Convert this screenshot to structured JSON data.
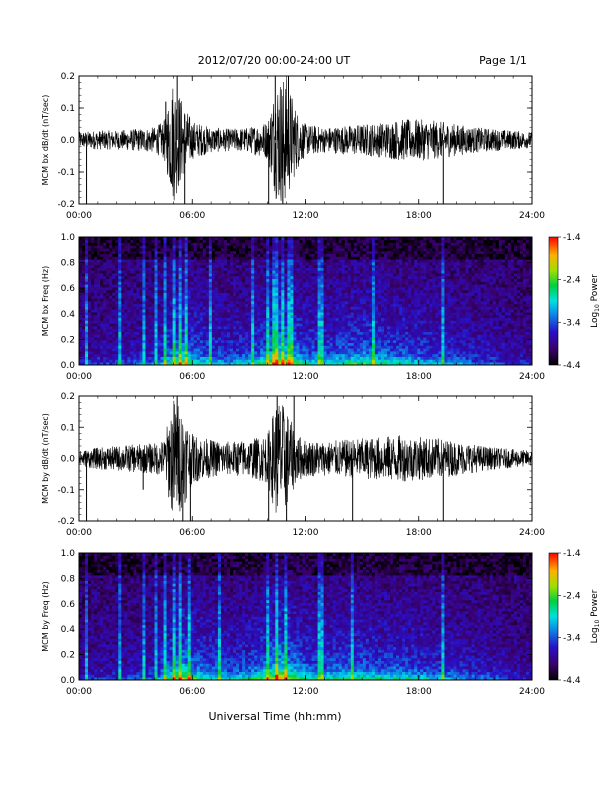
{
  "header": {
    "title": "2012/07/20  00:00-24:00 UT",
    "page": "Page 1/1"
  },
  "xaxis_label": "Universal Time (hh:mm)",
  "chart_data": [
    {
      "type": "line",
      "ylabel": "MCM bx dB/dt (nT/sec)",
      "xlim": [
        0,
        24
      ],
      "ylim": [
        -0.2,
        0.2
      ],
      "xticks": [
        "00:00",
        "06:00",
        "12:00",
        "18:00",
        "24:00"
      ],
      "yticks": [
        "0.2",
        "0.1",
        "0.0",
        "-0.1",
        "-0.2"
      ],
      "envelope": {
        "x_hours": [
          0,
          1,
          2,
          3,
          4,
          4.5,
          5,
          5.5,
          6,
          6.5,
          7,
          8,
          9,
          10,
          10.5,
          11,
          11.5,
          12,
          13,
          14,
          15,
          16,
          17,
          18,
          19,
          20,
          21,
          22,
          23,
          24
        ],
        "amplitude": [
          0.025,
          0.03,
          0.03,
          0.035,
          0.04,
          0.06,
          0.2,
          0.12,
          0.06,
          0.05,
          0.04,
          0.035,
          0.04,
          0.06,
          0.2,
          0.2,
          0.1,
          0.05,
          0.04,
          0.045,
          0.05,
          0.055,
          0.065,
          0.065,
          0.06,
          0.05,
          0.04,
          0.035,
          0.03,
          0.025
        ]
      },
      "spikes": [
        {
          "x": 0.4,
          "y": -0.2
        },
        {
          "x": 4.6,
          "y": 0.12
        },
        {
          "x": 5.2,
          "y": 0.2
        },
        {
          "x": 5.6,
          "y": -0.2
        },
        {
          "x": 10.05,
          "y": -0.2
        },
        {
          "x": 10.4,
          "y": 0.2
        },
        {
          "x": 10.8,
          "y": -0.2
        },
        {
          "x": 11.1,
          "y": 0.2
        },
        {
          "x": 19.3,
          "y": -0.2
        }
      ]
    },
    {
      "type": "heatmap",
      "ylabel": "MCM bx Freq (Hz)",
      "xlim": [
        0,
        24
      ],
      "ylim": [
        0.0,
        1.0
      ],
      "xticks": [
        "00:00",
        "06:00",
        "12:00",
        "18:00",
        "24:00"
      ],
      "yticks": [
        "1.0",
        "0.8",
        "0.6",
        "0.4",
        "0.2",
        "0.0"
      ],
      "colorbar": {
        "label": "Log10 Power",
        "label_base": "Log",
        "label_sub": "10",
        "label_rest": " Power",
        "range": [
          -4.4,
          -1.4
        ],
        "ticks": [
          "-1.4",
          "-2.4",
          "-3.4",
          "-4.4"
        ]
      },
      "activity": {
        "x_hours": [
          0,
          1,
          2,
          3,
          4,
          5,
          5.5,
          6,
          7,
          8,
          9,
          10,
          10.5,
          11,
          12,
          13,
          14,
          15,
          16,
          17,
          18,
          19,
          20,
          21,
          22,
          23,
          24
        ],
        "level": [
          0.15,
          0.2,
          0.22,
          0.25,
          0.3,
          0.6,
          0.75,
          0.55,
          0.45,
          0.4,
          0.45,
          0.6,
          0.9,
          0.8,
          0.5,
          0.45,
          0.55,
          0.6,
          0.55,
          0.5,
          0.45,
          0.4,
          0.35,
          0.3,
          0.25,
          0.2,
          0.15
        ]
      },
      "streaks": [
        0.4,
        2.2,
        3.4,
        4.1,
        4.6,
        5.1,
        5.3,
        5.7,
        6.9,
        9.2,
        10.05,
        10.4,
        10.8,
        11.2,
        12.8,
        15.6,
        19.3
      ]
    },
    {
      "type": "line",
      "ylabel": "MCM by dB/dt (nT/sec)",
      "xlim": [
        0,
        24
      ],
      "ylim": [
        -0.2,
        0.2
      ],
      "xticks": [
        "00:00",
        "06:00",
        "12:00",
        "18:00",
        "24:00"
      ],
      "yticks": [
        "0.2",
        "0.1",
        "0.0",
        "-0.1",
        "-0.2"
      ],
      "envelope": {
        "x_hours": [
          0,
          1,
          2,
          3,
          4,
          4.5,
          5,
          5.5,
          6,
          6.5,
          7,
          8,
          9,
          10,
          10.5,
          11,
          11.5,
          12,
          13,
          14,
          15,
          16,
          17,
          18,
          19,
          20,
          21,
          22,
          23,
          24
        ],
        "amplitude": [
          0.025,
          0.035,
          0.04,
          0.045,
          0.05,
          0.06,
          0.2,
          0.16,
          0.08,
          0.07,
          0.06,
          0.055,
          0.06,
          0.08,
          0.2,
          0.16,
          0.08,
          0.06,
          0.055,
          0.06,
          0.065,
          0.07,
          0.075,
          0.07,
          0.065,
          0.055,
          0.045,
          0.035,
          0.03,
          0.025
        ]
      },
      "spikes": [
        {
          "x": 0.4,
          "y": -0.2
        },
        {
          "x": 3.4,
          "y": -0.1
        },
        {
          "x": 5.2,
          "y": 0.2
        },
        {
          "x": 5.5,
          "y": -0.2
        },
        {
          "x": 5.9,
          "y": -0.2
        },
        {
          "x": 10.05,
          "y": -0.2
        },
        {
          "x": 10.5,
          "y": 0.2
        },
        {
          "x": 11.0,
          "y": -0.2
        },
        {
          "x": 11.4,
          "y": 0.2
        },
        {
          "x": 14.5,
          "y": -0.2
        },
        {
          "x": 19.3,
          "y": -0.2
        }
      ]
    },
    {
      "type": "heatmap",
      "ylabel": "MCM by Freq (Hz)",
      "xlim": [
        0,
        24
      ],
      "ylim": [
        0.0,
        1.0
      ],
      "xticks": [
        "00:00",
        "06:00",
        "12:00",
        "18:00",
        "24:00"
      ],
      "yticks": [
        "1.0",
        "0.8",
        "0.6",
        "0.4",
        "0.2",
        "0.0"
      ],
      "colorbar": {
        "label": "Log10 Power",
        "label_base": "Log",
        "label_sub": "10",
        "label_rest": " Power",
        "range": [
          -4.4,
          -1.4
        ],
        "ticks": [
          "-1.4",
          "-2.4",
          "-3.4",
          "-4.4"
        ]
      },
      "activity": {
        "x_hours": [
          0,
          1,
          2,
          3,
          4,
          5,
          5.5,
          6,
          7,
          8,
          9,
          10,
          10.5,
          11,
          12,
          13,
          14,
          15,
          16,
          17,
          18,
          19,
          20,
          21,
          22,
          23,
          24
        ],
        "level": [
          0.15,
          0.2,
          0.22,
          0.25,
          0.3,
          0.65,
          0.8,
          0.6,
          0.5,
          0.45,
          0.5,
          0.65,
          0.9,
          0.8,
          0.55,
          0.5,
          0.55,
          0.55,
          0.5,
          0.5,
          0.45,
          0.4,
          0.35,
          0.3,
          0.25,
          0.2,
          0.15
        ]
      },
      "streaks": [
        0.4,
        2.2,
        3.4,
        4.1,
        4.6,
        5.1,
        5.4,
        5.8,
        7.4,
        10.05,
        10.5,
        11.0,
        12.8,
        14.5,
        19.3
      ]
    }
  ]
}
